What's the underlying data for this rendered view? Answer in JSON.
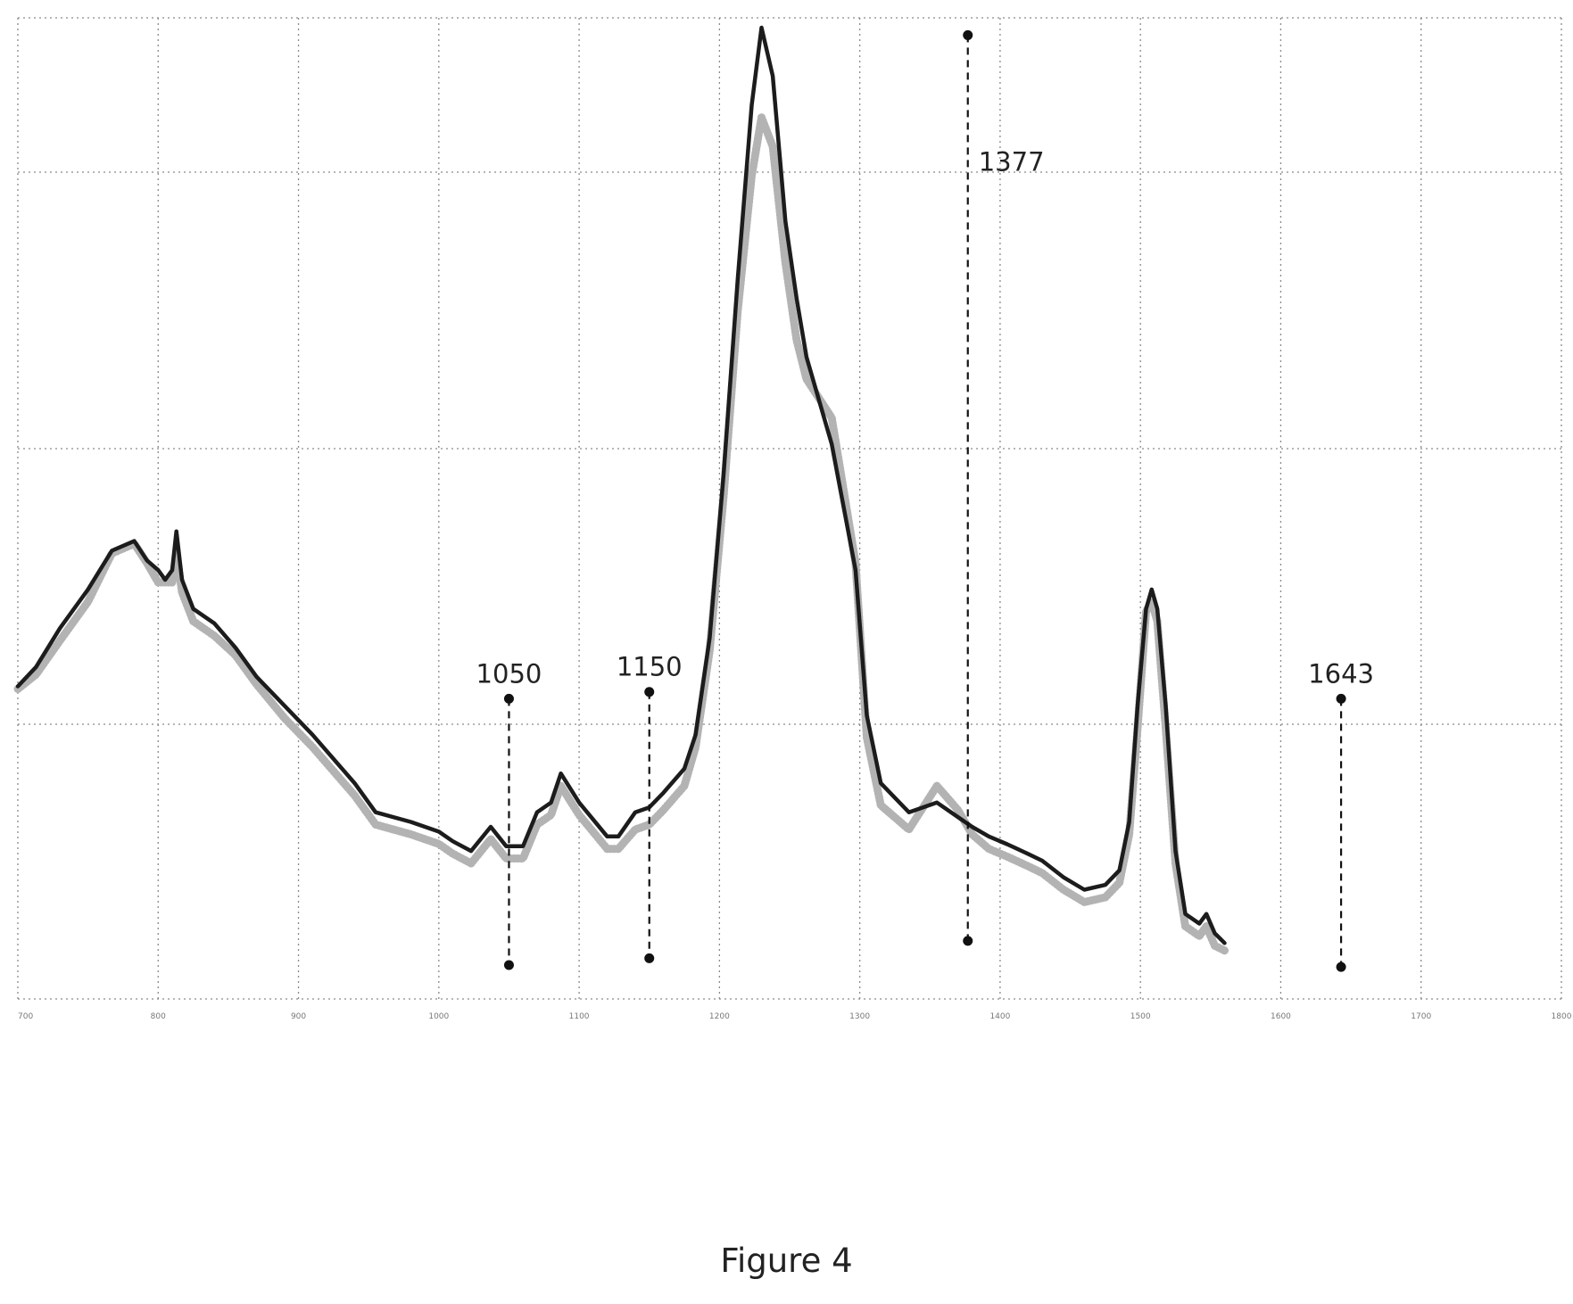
{
  "caption": "Figure 4",
  "colors": {
    "grid": "#8a8a8a",
    "series_dark": "#1c1c1c",
    "series_light": "#b3b3b3",
    "marker": "#111111"
  },
  "chart_data": {
    "type": "line",
    "title": "",
    "xlabel": "",
    "ylabel": "",
    "xlim": [
      700,
      1800
    ],
    "ylim": [
      0,
      1.0
    ],
    "grid": true,
    "legend": "none",
    "xticks": [
      700,
      800,
      900,
      1000,
      1100,
      1200,
      1300,
      1400,
      1500,
      1600,
      1700,
      1800
    ],
    "yticks": [
      0,
      0.3,
      0.6,
      0.9
    ],
    "series": [
      {
        "style": "dark-solid",
        "color": "#1c1c1c",
        "points": [
          [
            700,
            0.32
          ],
          [
            713,
            0.34
          ],
          [
            730,
            0.38
          ],
          [
            750,
            0.42
          ],
          [
            767,
            0.46
          ],
          [
            783,
            0.47
          ],
          [
            792,
            0.45
          ],
          [
            800,
            0.44
          ],
          [
            805,
            0.43
          ],
          [
            810,
            0.44
          ],
          [
            813,
            0.48
          ],
          [
            817,
            0.43
          ],
          [
            825,
            0.4
          ],
          [
            840,
            0.385
          ],
          [
            855,
            0.36
          ],
          [
            870,
            0.33
          ],
          [
            890,
            0.3
          ],
          [
            910,
            0.27
          ],
          [
            940,
            0.22
          ],
          [
            955,
            0.19
          ],
          [
            980,
            0.18
          ],
          [
            1000,
            0.17
          ],
          [
            1010,
            0.16
          ],
          [
            1023,
            0.15
          ],
          [
            1037,
            0.175
          ],
          [
            1048,
            0.155
          ],
          [
            1060,
            0.155
          ],
          [
            1070,
            0.19
          ],
          [
            1080,
            0.2
          ],
          [
            1087,
            0.23
          ],
          [
            1100,
            0.2
          ],
          [
            1120,
            0.165
          ],
          [
            1128,
            0.165
          ],
          [
            1140,
            0.19
          ],
          [
            1150,
            0.195
          ],
          [
            1160,
            0.21
          ],
          [
            1175,
            0.235
          ],
          [
            1183,
            0.27
          ],
          [
            1193,
            0.37
          ],
          [
            1203,
            0.54
          ],
          [
            1213,
            0.74
          ],
          [
            1223,
            0.92
          ],
          [
            1230,
            1.0
          ],
          [
            1238,
            0.95
          ],
          [
            1247,
            0.8
          ],
          [
            1255,
            0.72
          ],
          [
            1262,
            0.66
          ],
          [
            1280,
            0.57
          ],
          [
            1297,
            0.44
          ],
          [
            1305,
            0.29
          ],
          [
            1315,
            0.22
          ],
          [
            1335,
            0.19
          ],
          [
            1355,
            0.2
          ],
          [
            1370,
            0.185
          ],
          [
            1380,
            0.175
          ],
          [
            1392,
            0.165
          ],
          [
            1405,
            0.157
          ],
          [
            1420,
            0.147
          ],
          [
            1430,
            0.14
          ],
          [
            1445,
            0.123
          ],
          [
            1460,
            0.11
          ],
          [
            1475,
            0.115
          ],
          [
            1485,
            0.13
          ],
          [
            1492,
            0.18
          ],
          [
            1498,
            0.3
          ],
          [
            1504,
            0.4
          ],
          [
            1508,
            0.42
          ],
          [
            1512,
            0.4
          ],
          [
            1518,
            0.3
          ],
          [
            1525,
            0.15
          ],
          [
            1532,
            0.085
          ],
          [
            1542,
            0.075
          ],
          [
            1547,
            0.085
          ],
          [
            1553,
            0.065
          ],
          [
            1560,
            0.055
          ]
        ]
      },
      {
        "style": "light-dotted",
        "color": "#b3b3b3",
        "points": [
          [
            700,
            0.32
          ],
          [
            713,
            0.335
          ],
          [
            730,
            0.37
          ],
          [
            750,
            0.41
          ],
          [
            767,
            0.46
          ],
          [
            783,
            0.47
          ],
          [
            792,
            0.45
          ],
          [
            800,
            0.43
          ],
          [
            805,
            0.43
          ],
          [
            810,
            0.43
          ],
          [
            813,
            0.46
          ],
          [
            817,
            0.42
          ],
          [
            825,
            0.39
          ],
          [
            840,
            0.375
          ],
          [
            855,
            0.355
          ],
          [
            870,
            0.325
          ],
          [
            890,
            0.29
          ],
          [
            910,
            0.26
          ],
          [
            940,
            0.21
          ],
          [
            955,
            0.18
          ],
          [
            980,
            0.17
          ],
          [
            1000,
            0.16
          ],
          [
            1010,
            0.15
          ],
          [
            1023,
            0.14
          ],
          [
            1037,
            0.165
          ],
          [
            1048,
            0.145
          ],
          [
            1060,
            0.145
          ],
          [
            1070,
            0.18
          ],
          [
            1080,
            0.19
          ],
          [
            1087,
            0.22
          ],
          [
            1100,
            0.19
          ],
          [
            1120,
            0.155
          ],
          [
            1128,
            0.155
          ],
          [
            1140,
            0.175
          ],
          [
            1150,
            0.18
          ],
          [
            1160,
            0.195
          ],
          [
            1175,
            0.22
          ],
          [
            1183,
            0.26
          ],
          [
            1193,
            0.36
          ],
          [
            1203,
            0.52
          ],
          [
            1213,
            0.71
          ],
          [
            1223,
            0.85
          ],
          [
            1230,
            0.91
          ],
          [
            1238,
            0.88
          ],
          [
            1247,
            0.76
          ],
          [
            1255,
            0.68
          ],
          [
            1262,
            0.64
          ],
          [
            1280,
            0.6
          ],
          [
            1297,
            0.45
          ],
          [
            1305,
            0.27
          ],
          [
            1315,
            0.2
          ],
          [
            1335,
            0.175
          ],
          [
            1355,
            0.22
          ],
          [
            1370,
            0.195
          ],
          [
            1380,
            0.17
          ],
          [
            1392,
            0.155
          ],
          [
            1405,
            0.147
          ],
          [
            1420,
            0.137
          ],
          [
            1430,
            0.13
          ],
          [
            1445,
            0.113
          ],
          [
            1460,
            0.1
          ],
          [
            1475,
            0.105
          ],
          [
            1485,
            0.12
          ],
          [
            1492,
            0.17
          ],
          [
            1498,
            0.28
          ],
          [
            1504,
            0.4
          ],
          [
            1508,
            0.41
          ],
          [
            1512,
            0.39
          ],
          [
            1518,
            0.28
          ],
          [
            1525,
            0.14
          ],
          [
            1532,
            0.075
          ],
          [
            1542,
            0.065
          ],
          [
            1547,
            0.075
          ],
          [
            1553,
            0.055
          ],
          [
            1560,
            0.05
          ]
        ]
      }
    ],
    "markers": [
      {
        "label": "1050",
        "x": 1050,
        "y_top": 0.31,
        "y_bottom": 0.035
      },
      {
        "label": "1150",
        "x": 1150,
        "y_top": 0.317,
        "y_bottom": 0.042
      },
      {
        "label": "1377",
        "x": 1377,
        "y_top": 0.995,
        "y_bottom": 0.06
      },
      {
        "label": "1643",
        "x": 1643,
        "y_top": 0.31,
        "y_bottom": 0.033
      }
    ]
  }
}
